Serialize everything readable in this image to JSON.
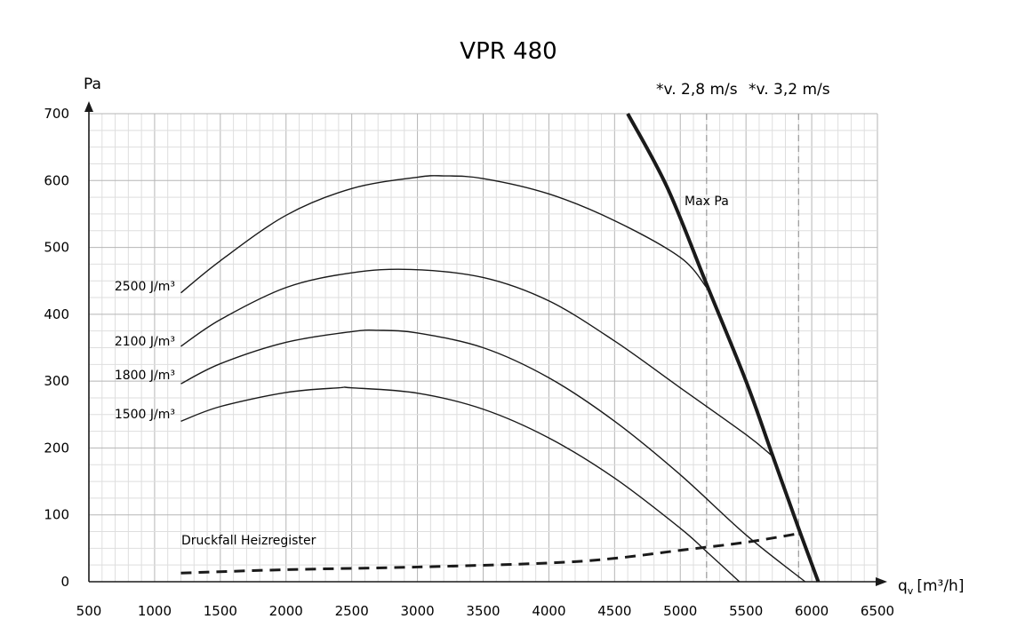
{
  "chart_data": {
    "type": "line",
    "title": "VPR 480",
    "ylabel": "Pa",
    "xlabel_main": "q",
    "xlabel_sub": "v",
    "xlabel_unit": "[m³/h]",
    "xlim": [
      500,
      6500
    ],
    "ylim": [
      0,
      700
    ],
    "x_ticks": [
      500,
      1000,
      1500,
      2000,
      2500,
      3000,
      3500,
      4000,
      4500,
      5000,
      5500,
      6000,
      6500
    ],
    "y_ticks": [
      0,
      100,
      200,
      300,
      400,
      500,
      600,
      700
    ],
    "grid": true,
    "series": [
      {
        "name": "2500 J/m³",
        "style": "thin",
        "points": [
          [
            1200,
            432
          ],
          [
            1500,
            480
          ],
          [
            2000,
            548
          ],
          [
            2500,
            588
          ],
          [
            3000,
            605
          ],
          [
            3200,
            607
          ],
          [
            3500,
            603
          ],
          [
            4000,
            580
          ],
          [
            4500,
            540
          ],
          [
            5000,
            485
          ],
          [
            5200,
            440
          ]
        ]
      },
      {
        "name": "2100 J/m³",
        "style": "thin",
        "points": [
          [
            1200,
            352
          ],
          [
            1500,
            392
          ],
          [
            2000,
            440
          ],
          [
            2500,
            462
          ],
          [
            2950,
            467
          ],
          [
            3500,
            455
          ],
          [
            4000,
            420
          ],
          [
            4500,
            360
          ],
          [
            5000,
            290
          ],
          [
            5500,
            220
          ],
          [
            5700,
            188
          ]
        ]
      },
      {
        "name": "1800 J/m³",
        "style": "thin",
        "points": [
          [
            1200,
            296
          ],
          [
            1500,
            326
          ],
          [
            2000,
            358
          ],
          [
            2500,
            374
          ],
          [
            2700,
            376
          ],
          [
            3000,
            372
          ],
          [
            3500,
            350
          ],
          [
            4000,
            305
          ],
          [
            4500,
            240
          ],
          [
            5000,
            160
          ],
          [
            5500,
            70
          ],
          [
            5950,
            0
          ]
        ]
      },
      {
        "name": "1500 J/m³",
        "style": "thin",
        "points": [
          [
            1200,
            240
          ],
          [
            1500,
            262
          ],
          [
            2000,
            283
          ],
          [
            2400,
            290
          ],
          [
            2500,
            290
          ],
          [
            3000,
            282
          ],
          [
            3500,
            258
          ],
          [
            4000,
            215
          ],
          [
            4500,
            155
          ],
          [
            5000,
            80
          ],
          [
            5200,
            45
          ],
          [
            5450,
            0
          ]
        ]
      },
      {
        "name": "Max Pa",
        "style": "thick",
        "points": [
          [
            4600,
            700
          ],
          [
            4900,
            590
          ],
          [
            5200,
            445
          ],
          [
            5500,
            300
          ],
          [
            5700,
            190
          ],
          [
            5900,
            80
          ],
          [
            6050,
            0
          ]
        ]
      },
      {
        "name": "Druckfall Heizregister",
        "style": "dashed",
        "points": [
          [
            1200,
            13
          ],
          [
            2000,
            18
          ],
          [
            3000,
            22
          ],
          [
            4000,
            28
          ],
          [
            4500,
            35
          ],
          [
            5000,
            47
          ],
          [
            5500,
            59
          ],
          [
            5900,
            72
          ]
        ]
      }
    ],
    "reference_lines": [
      {
        "label": "*v. 2,8 m/s",
        "x": 5200
      },
      {
        "label": "*v. 3,2 m/s",
        "x": 5900
      }
    ]
  }
}
